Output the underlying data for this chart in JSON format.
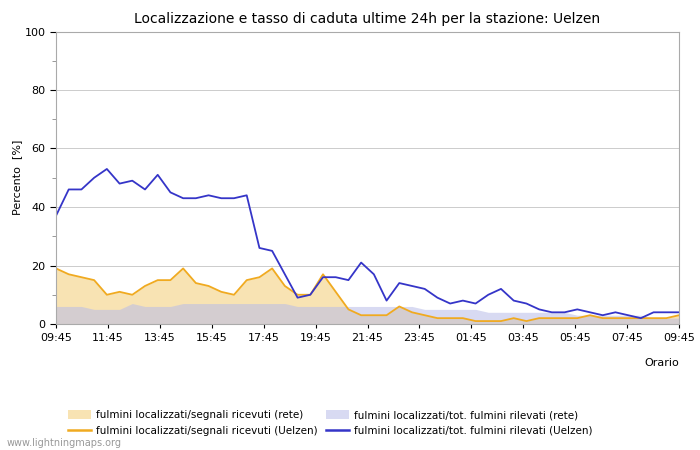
{
  "title": "Localizzazione e tasso di caduta ultime 24h per la stazione: Uelzen",
  "xlabel": "Orario",
  "ylabel": "Percento  [%]",
  "ylim": [
    0,
    100
  ],
  "background_color": "#ffffff",
  "watermark": "www.lightningmaps.org",
  "x_labels": [
    "09:45",
    "11:45",
    "13:45",
    "15:45",
    "17:45",
    "19:45",
    "21:45",
    "23:45",
    "01:45",
    "03:45",
    "05:45",
    "07:45",
    "09:45"
  ],
  "series": {
    "loc_rete_fill": {
      "color": "#f5d48a",
      "alpha": 0.65,
      "values": [
        19,
        17,
        16,
        15,
        10,
        11,
        10,
        13,
        15,
        15,
        19,
        14,
        13,
        11,
        10,
        15,
        16,
        19,
        13,
        10,
        10,
        17,
        11,
        5,
        3,
        3,
        3,
        6,
        4,
        3,
        2,
        2,
        2,
        1,
        1,
        1,
        2,
        1,
        2,
        2,
        2,
        2,
        3,
        2,
        2,
        2,
        2,
        2,
        2,
        3
      ]
    },
    "tot_rete_fill": {
      "color": "#b8bce8",
      "alpha": 0.55,
      "values": [
        6,
        6,
        6,
        5,
        5,
        5,
        7,
        6,
        6,
        6,
        7,
        7,
        7,
        7,
        7,
        7,
        7,
        7,
        7,
        6,
        6,
        6,
        6,
        6,
        6,
        6,
        6,
        6,
        6,
        5,
        5,
        5,
        5,
        5,
        4,
        4,
        4,
        4,
        4,
        4,
        4,
        3,
        3,
        3,
        3,
        3,
        3,
        2,
        2,
        2
      ]
    },
    "loc_uelzen_line": {
      "color": "#f0aa20",
      "linewidth": 1.3,
      "values": [
        19,
        17,
        16,
        15,
        10,
        11,
        10,
        13,
        15,
        15,
        19,
        14,
        13,
        11,
        10,
        15,
        16,
        19,
        13,
        10,
        10,
        17,
        11,
        5,
        3,
        3,
        3,
        6,
        4,
        3,
        2,
        2,
        2,
        1,
        1,
        1,
        2,
        1,
        2,
        2,
        2,
        2,
        3,
        2,
        2,
        2,
        2,
        2,
        2,
        3
      ]
    },
    "tot_uelzen_line": {
      "color": "#3535c8",
      "linewidth": 1.3,
      "values": [
        37,
        46,
        46,
        50,
        53,
        48,
        49,
        46,
        51,
        45,
        43,
        43,
        44,
        43,
        43,
        44,
        26,
        25,
        17,
        9,
        10,
        16,
        16,
        15,
        21,
        17,
        8,
        14,
        13,
        12,
        9,
        7,
        8,
        7,
        10,
        12,
        8,
        7,
        5,
        4,
        4,
        5,
        4,
        3,
        4,
        3,
        2,
        4,
        4,
        4
      ]
    }
  },
  "legend": [
    {
      "label": "fulmini localizzati/segnali ricevuti (rete)",
      "color": "#f5d48a",
      "alpha": 0.65,
      "type": "fill"
    },
    {
      "label": "fulmini localizzati/segnali ricevuti (Uelzen)",
      "color": "#f0aa20",
      "type": "line"
    },
    {
      "label": "fulmini localizzati/tot. fulmini rilevati (rete)",
      "color": "#b8bce8",
      "alpha": 0.55,
      "type": "fill"
    },
    {
      "label": "fulmini localizzati/tot. fulmini rilevati (Uelzen)",
      "color": "#3535c8",
      "type": "line"
    }
  ],
  "grid_color": "#cccccc",
  "spine_color": "#aaaaaa",
  "minor_tick_color": "#888888",
  "title_fontsize": 10,
  "axis_label_fontsize": 8,
  "tick_fontsize": 8,
  "legend_fontsize": 7.5,
  "watermark_fontsize": 7,
  "watermark_color": "#999999"
}
